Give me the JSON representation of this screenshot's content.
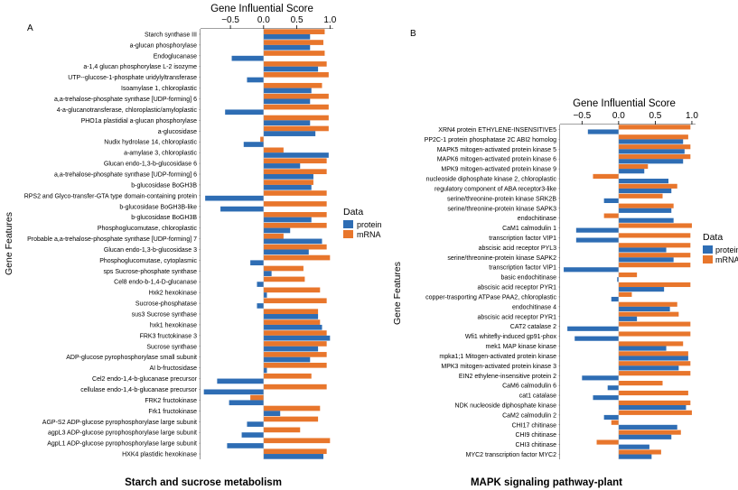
{
  "colors": {
    "protein": "#2E6DB4",
    "mRNA": "#E8762C",
    "stripe": "#ffffff"
  },
  "chart_data": [
    {
      "type": "bar",
      "orientation": "horizontal",
      "panel_label": "A",
      "title": "Starch and sucrose metabolism",
      "xlabel": "Gene Influential Score",
      "ylabel": "Gene Features",
      "xlim": [
        -0.95,
        1.05
      ],
      "xticks": [
        -0.5,
        0.0,
        0.5,
        1.0
      ],
      "xtick_labels": [
        "−0.5",
        "0.0",
        "0.5",
        "1.0"
      ],
      "legend": {
        "title": "Data",
        "items": [
          "protein",
          "mRNA"
        ],
        "position": "right"
      },
      "categories": [
        "Starch synthase III",
        "a-glucan phosphorylase",
        "Endoglucanase",
        "a-1,4 glucan phosphorylase L-2 isozyme",
        "UTP--glucose-1-phosphate uridylyltransferase",
        "Isoamylase 1, chloroplastic",
        "a,a-trehalose-phosphate synthase [UDP-forming] 6",
        "4-a-glucanotransferase, chloroplastic/amyloplastic",
        "PHO1a plastidial a-glucan phosphorylase",
        "a-glucosidase",
        "Nudix hydrolase 14, chloroplastic",
        "a-amylase 3, chloroplastic",
        "Glucan endo-1,3-b-glucosidase 6",
        "a,a-trehalose-phosphate synthase [UDP-forming] 6",
        "b-glucosidase BoGH3B",
        "RPS2 and Glyco-transfer-GTA type domain-containing protein",
        "b-glucosidase BoGH3B-like",
        "b-glucosidase BoGH3B",
        "Phosphoglucomutase, chloroplastic",
        "Probable a,a-trehalose-phosphate synthase [UDP-forming] 7",
        "Glucan endo-1,3-b-glucosidase 3",
        "Phosphoglucomutase, cytoplasmic",
        "sps Sucrose-phosphate synthase",
        "Cel8 endo-b-1,4-D-glucanase",
        "Hxk2 hexokinase",
        "Sucrose-phosphatase",
        "sus3 Sucrose synthase",
        "hxk1 hexokinase",
        "FRK3 fructokinase 3",
        "Sucrose synthase",
        "ADP-glucose pyrophosphorylase small subunit",
        "AI b-fructosidase",
        "Cel2 endo-1,4-b-glucanase precursor",
        "cellulase endo-1,4-b-glucanase precursor",
        "FRK2 fructokinase",
        "Frk1 fructokinase",
        "AGP-S2 ADP-glucose pyrophosphorylase large subunit",
        "agpL3 ADP-glucose pyrophosphorylase large subunit",
        "AgpL1 ADP-glucose pyrophosphorylase large subunit",
        "HXK4 plastidic hexokinase"
      ],
      "series": [
        {
          "name": "mRNA",
          "values": [
            0.92,
            0.9,
            0.92,
            0.95,
            0.98,
            0.88,
            0.98,
            0.98,
            0.98,
            0.98,
            -0.05,
            0.3,
            0.95,
            0.95,
            0.75,
            0.95,
            0.95,
            0.95,
            0.95,
            0.3,
            0.95,
            1.0,
            0.6,
            0.62,
            0.85,
            0.95,
            0.82,
            0.85,
            0.95,
            0.95,
            0.95,
            0.95,
            0.72,
            0.95,
            -0.2,
            0.85,
            0.82,
            0.55,
            1.0,
            0.95
          ]
        },
        {
          "name": "protein",
          "values": [
            0.7,
            0.7,
            -0.48,
            0.82,
            -0.25,
            0.72,
            0.7,
            -0.58,
            0.7,
            0.78,
            -0.3,
            0.98,
            0.55,
            0.75,
            0.72,
            -0.88,
            -0.65,
            0.72,
            0.4,
            0.88,
            0.68,
            -0.2,
            0.12,
            -0.1,
            0.05,
            -0.1,
            0.82,
            0.88,
            1.0,
            0.82,
            0.7,
            0.05,
            -0.7,
            -0.9,
            -0.52,
            0.25,
            -0.25,
            -0.33,
            -0.55,
            0.9
          ]
        }
      ]
    },
    {
      "type": "bar",
      "orientation": "horizontal",
      "panel_label": "B",
      "title": "MAPK signaling pathway-plant",
      "xlabel": "Gene Influential Score",
      "ylabel": "Gene Features",
      "xlim": [
        -0.8,
        1.05
      ],
      "xticks": [
        -0.5,
        0.0,
        0.5,
        1.0
      ],
      "xtick_labels": [
        "−0.5",
        "0.0",
        "0.5",
        "1.0"
      ],
      "legend": {
        "title": "Data",
        "items": [
          "protein",
          "mRNA"
        ],
        "position": "right"
      },
      "categories": [
        "XRN4 protein ETHYLENE-INSENSITIVE5",
        "PP2C-1 protein phosphatase 2C ABI2 homolog",
        "MAPK5 mitogen-activated protein kinase 5",
        "MAPK6 mitogen-activated protein kinase 6",
        "MPK9 mitogen-activated protein kinase 9",
        "nucleoside diphosphate kinase 2, chloroplastic",
        "regulatory component of ABA receptor3-like",
        "serine/threonine-protein kinase SRK2B",
        "serine/threonine-protein kinase SAPK3",
        "endochitinase",
        "CaM1 calmodulin 1",
        "transcription factor VIP1",
        "abscisic acid receptor PYL3",
        "serine/threonine-protein kinase SAPK2",
        "transcription factor VIP1",
        "basic endochitinase",
        "abscisic acid receptor PYR1",
        "copper-trasporting ATPase PAA2, chloroplastic",
        "endochitinase 4",
        "abscisic acid receptor PYR1",
        "CAT2 catalase 2",
        "Wfi1 whitefly-induced gp91-phox",
        "mek1 MAP kinase kinase",
        "mpka1;1 Mitogen-activated protein kinase",
        "MPK3 mitogen-activated protein kinase 3",
        "EIN2 ethylene-insensitive protein 2",
        "CaM6 calmodulin 6",
        "cat1 catalase",
        "NDK nucleoside diphosphate kinase",
        "CaM2 calmodulin 2",
        "CHI17 chitinase",
        "CHI9 chitinase",
        "CHI3 chitinase",
        "MYC2 transcription factor MYC2"
      ],
      "series": [
        {
          "name": "mRNA",
          "values": [
            0.98,
            0.95,
            0.98,
            0.98,
            0.4,
            -0.35,
            0.8,
            0.6,
            0.75,
            -0.2,
            1.0,
            0.98,
            0.98,
            0.98,
            0.98,
            0.25,
            0.98,
            0.18,
            0.8,
            0.82,
            0.98,
            0.98,
            0.88,
            0.95,
            0.98,
            0.98,
            0.6,
            0.95,
            0.98,
            1.0,
            -0.1,
            0.85,
            -0.3,
            0.58
          ]
        },
        {
          "name": "protein",
          "values": [
            -0.42,
            0.88,
            0.9,
            0.88,
            0.35,
            0.68,
            0.72,
            -0.2,
            0.72,
            0.75,
            -0.58,
            -0.58,
            0.65,
            0.75,
            -0.75,
            -0.02,
            0.62,
            -0.1,
            0.7,
            0.25,
            -0.7,
            -0.6,
            0.65,
            0.95,
            0.82,
            -0.5,
            -0.15,
            -0.35,
            0.92,
            -0.2,
            0.8,
            0.72,
            0.42,
            0.45
          ]
        }
      ]
    }
  ]
}
